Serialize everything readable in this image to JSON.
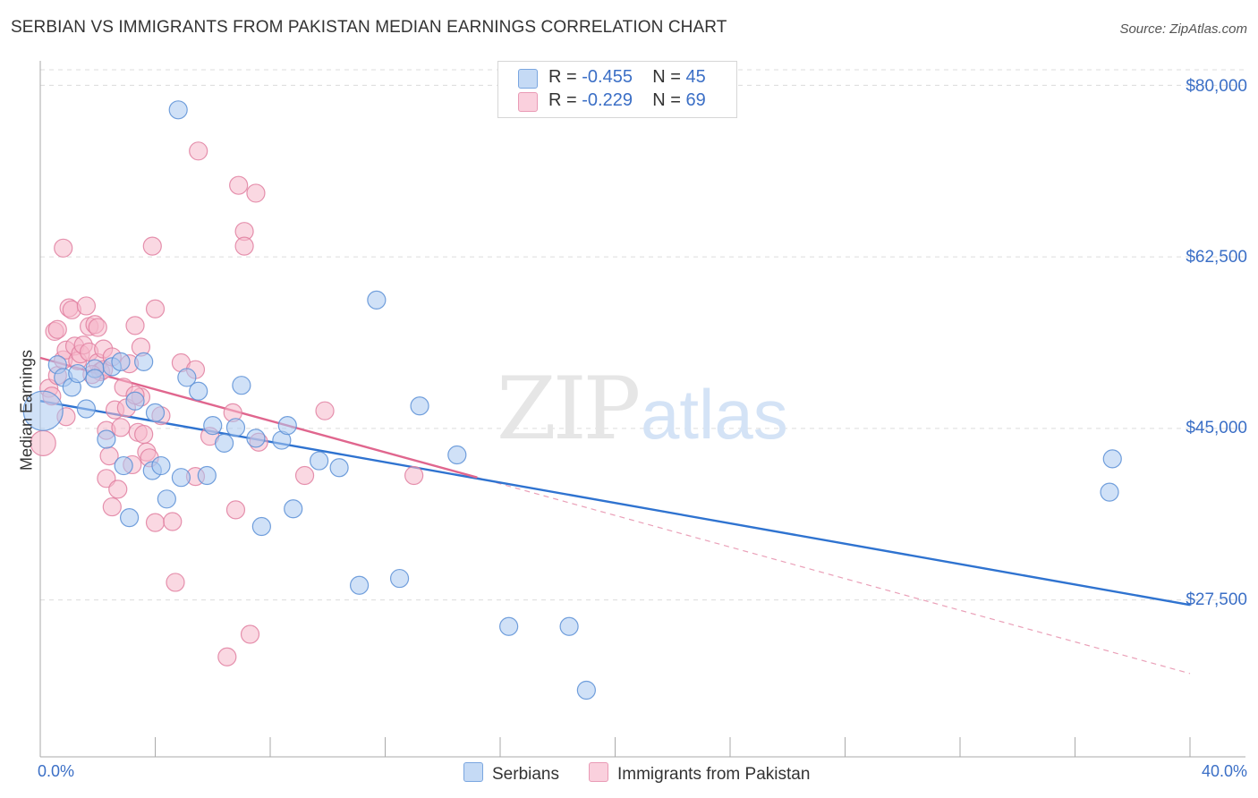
{
  "title": "SERBIAN VS IMMIGRANTS FROM PAKISTAN MEDIAN EARNINGS CORRELATION CHART",
  "source": "Source: ZipAtlas.com",
  "watermark": {
    "zip": "ZIP",
    "atlas": "atlas"
  },
  "chart_data": {
    "type": "scatter",
    "title": "SERBIAN VS IMMIGRANTS FROM PAKISTAN MEDIAN EARNINGS CORRELATION CHART",
    "ylabel": "Median Earnings",
    "xlabel": "",
    "xlim": [
      0,
      40
    ],
    "ylim": [
      11500,
      82500
    ],
    "x_tick_labels": [
      "0.0%",
      "40.0%"
    ],
    "y_ticks": [
      {
        "value": 80000,
        "label": "$80,000"
      },
      {
        "value": 62500,
        "label": "$62,500"
      },
      {
        "value": 45000,
        "label": "$45,000"
      },
      {
        "value": 27500,
        "label": "$27,500"
      }
    ],
    "legend": [
      {
        "name": "Serbians",
        "color": "#aac8f0",
        "stroke": "#5b8fd6",
        "r_label": "R = ",
        "r": "-0.455",
        "n_label": "N = ",
        "n": "45"
      },
      {
        "name": "Immigrants from Pakistan",
        "color": "#f6b8cb",
        "stroke": "#e07fa0",
        "r_label": "R = ",
        "r": "-0.229",
        "n_label": "N = ",
        "n": "69"
      }
    ],
    "series": [
      {
        "name": "Serbians",
        "color": "#aac8f0",
        "stroke": "#5b8fd6",
        "trend": {
          "x0": 0,
          "y0": 47800,
          "x1": 40,
          "y1": 27000,
          "color": "#2f73d0"
        },
        "points": [
          [
            0.1,
            46800,
            22
          ],
          [
            0.6,
            51500,
            10
          ],
          [
            0.8,
            50200,
            10
          ],
          [
            1.1,
            49200,
            10
          ],
          [
            1.3,
            50600,
            10
          ],
          [
            1.6,
            47000,
            10
          ],
          [
            1.9,
            51100,
            10
          ],
          [
            1.9,
            50100,
            10
          ],
          [
            2.3,
            43900,
            10
          ],
          [
            2.5,
            51300,
            10
          ],
          [
            2.8,
            51800,
            10
          ],
          [
            2.9,
            41200,
            10
          ],
          [
            3.1,
            35900,
            10
          ],
          [
            3.3,
            47800,
            10
          ],
          [
            3.6,
            51800,
            10
          ],
          [
            3.9,
            40700,
            10
          ],
          [
            4.0,
            46600,
            10
          ],
          [
            4.2,
            41200,
            10
          ],
          [
            4.4,
            37800,
            10
          ],
          [
            4.9,
            40000,
            10
          ],
          [
            5.1,
            50200,
            10
          ],
          [
            5.5,
            48800,
            10
          ],
          [
            5.8,
            40200,
            10
          ],
          [
            6.0,
            45300,
            10
          ],
          [
            6.4,
            43500,
            10
          ],
          [
            6.8,
            45100,
            10
          ],
          [
            7.0,
            49400,
            10
          ],
          [
            7.5,
            44000,
            10
          ],
          [
            7.7,
            35000,
            10
          ],
          [
            8.4,
            43800,
            10
          ],
          [
            8.6,
            45300,
            10
          ],
          [
            8.8,
            36800,
            10
          ],
          [
            9.7,
            41700,
            10
          ],
          [
            10.4,
            41000,
            10
          ],
          [
            11.1,
            29000,
            10
          ],
          [
            11.7,
            58100,
            10
          ],
          [
            12.5,
            29700,
            10
          ],
          [
            13.2,
            47300,
            10
          ],
          [
            14.5,
            42300,
            10
          ],
          [
            16.3,
            24800,
            10
          ],
          [
            18.4,
            24800,
            10
          ],
          [
            19.0,
            18300,
            10
          ],
          [
            4.8,
            77500,
            10
          ],
          [
            37.3,
            41900,
            10
          ],
          [
            37.2,
            38500,
            10
          ]
        ]
      },
      {
        "name": "Immigrants from Pakistan",
        "color": "#f6b8cb",
        "stroke": "#e07fa0",
        "trend": {
          "x0": 0,
          "y0": 52200,
          "x1": 15.2,
          "y1": 40000,
          "color": "#e0668e"
        },
        "trend_extension": {
          "x0": 15.2,
          "y0": 40000,
          "x1": 40,
          "y1": 20000
        },
        "points": [
          [
            0.1,
            43500,
            14
          ],
          [
            0.3,
            49100,
            10
          ],
          [
            0.4,
            48300,
            10
          ],
          [
            0.6,
            50400,
            10
          ],
          [
            0.8,
            52000,
            10
          ],
          [
            0.5,
            54900,
            10
          ],
          [
            0.6,
            55100,
            10
          ],
          [
            0.9,
            53000,
            10
          ],
          [
            0.8,
            63400,
            10
          ],
          [
            1.0,
            57300,
            10
          ],
          [
            1.1,
            57100,
            10
          ],
          [
            1.2,
            53400,
            10
          ],
          [
            1.3,
            51900,
            10
          ],
          [
            1.4,
            52600,
            10
          ],
          [
            1.5,
            53500,
            10
          ],
          [
            1.6,
            57500,
            10
          ],
          [
            1.7,
            55400,
            10
          ],
          [
            1.7,
            52800,
            10
          ],
          [
            1.9,
            55600,
            10
          ],
          [
            2.0,
            55300,
            10
          ],
          [
            2.0,
            51700,
            10
          ],
          [
            2.1,
            50800,
            10
          ],
          [
            2.2,
            53100,
            10
          ],
          [
            2.2,
            51000,
            10
          ],
          [
            2.3,
            44800,
            10
          ],
          [
            2.3,
            39900,
            10
          ],
          [
            2.5,
            52300,
            10
          ],
          [
            2.6,
            46900,
            10
          ],
          [
            2.7,
            38800,
            10
          ],
          [
            2.8,
            45100,
            10
          ],
          [
            2.9,
            49200,
            10
          ],
          [
            3.0,
            47100,
            10
          ],
          [
            3.1,
            51600,
            10
          ],
          [
            3.2,
            41300,
            10
          ],
          [
            3.3,
            55500,
            10
          ],
          [
            3.4,
            44600,
            10
          ],
          [
            3.5,
            48200,
            10
          ],
          [
            3.5,
            53300,
            10
          ],
          [
            3.6,
            44400,
            10
          ],
          [
            3.7,
            42600,
            10
          ],
          [
            3.8,
            42000,
            10
          ],
          [
            3.9,
            63600,
            10
          ],
          [
            4.0,
            35400,
            10
          ],
          [
            4.2,
            46300,
            10
          ],
          [
            4.0,
            57200,
            10
          ],
          [
            4.6,
            35500,
            10
          ],
          [
            4.7,
            29300,
            10
          ],
          [
            4.9,
            51700,
            10
          ],
          [
            5.4,
            51000,
            10
          ],
          [
            5.4,
            40100,
            10
          ],
          [
            5.5,
            73300,
            10
          ],
          [
            5.9,
            44200,
            10
          ],
          [
            6.5,
            21700,
            10
          ],
          [
            6.7,
            46600,
            10
          ],
          [
            6.8,
            36700,
            10
          ],
          [
            6.9,
            69800,
            10
          ],
          [
            7.1,
            65100,
            10
          ],
          [
            7.1,
            63600,
            10
          ],
          [
            7.3,
            24000,
            10
          ],
          [
            7.5,
            69000,
            10
          ],
          [
            7.6,
            43600,
            10
          ],
          [
            9.2,
            40200,
            10
          ],
          [
            9.9,
            46800,
            10
          ],
          [
            13.0,
            40200,
            10
          ],
          [
            2.5,
            37000,
            10
          ],
          [
            1.8,
            50500,
            10
          ],
          [
            0.9,
            46200,
            10
          ],
          [
            2.4,
            42200,
            10
          ],
          [
            3.3,
            48400,
            10
          ]
        ]
      }
    ]
  }
}
